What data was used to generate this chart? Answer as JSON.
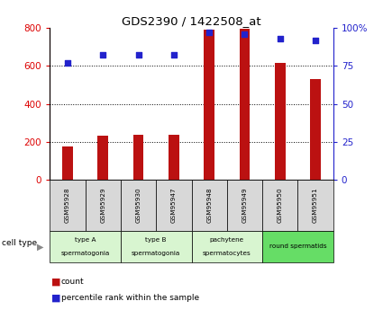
{
  "title": "GDS2390 / 1422508_at",
  "samples": [
    "GSM95928",
    "GSM95929",
    "GSM95930",
    "GSM95947",
    "GSM95948",
    "GSM95949",
    "GSM95950",
    "GSM95951"
  ],
  "counts": [
    175,
    230,
    235,
    235,
    790,
    795,
    615,
    530
  ],
  "percentile_ranks": [
    77,
    82,
    82,
    82,
    97,
    96,
    93,
    92
  ],
  "cell_types": [
    {
      "label": "type A\nspermatogonia",
      "start": 0,
      "end": 2,
      "color": "#d8f5d0"
    },
    {
      "label": "type B\nspermatogonia",
      "start": 2,
      "end": 4,
      "color": "#d8f5d0"
    },
    {
      "label": "pachytene\nspermatocytes",
      "start": 4,
      "end": 6,
      "color": "#d8f5d0"
    },
    {
      "label": "round spermatids",
      "start": 6,
      "end": 8,
      "color": "#66dd66"
    }
  ],
  "ylim_left": [
    0,
    800
  ],
  "ylim_right": [
    0,
    100
  ],
  "yticks_left": [
    0,
    200,
    400,
    600,
    800
  ],
  "yticks_right": [
    0,
    25,
    50,
    75,
    100
  ],
  "bar_color": "#bb1111",
  "dot_color": "#2222cc",
  "background_color": "#ffffff",
  "left_axis_color": "#dd0000",
  "right_axis_color": "#2222cc",
  "sample_box_color": "#d8d8d8",
  "bar_width": 0.3
}
